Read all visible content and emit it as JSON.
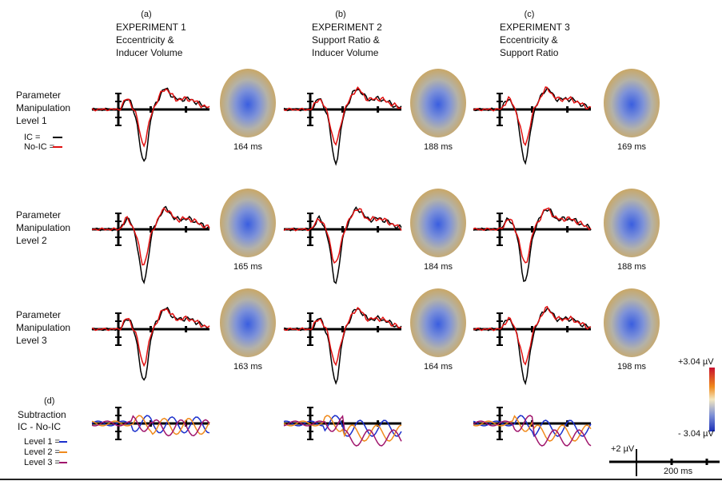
{
  "columns": [
    {
      "letter": "(a)",
      "title": "EXPERIMENT 1",
      "line1": "Eccentricity &",
      "line2": "Inducer Volume"
    },
    {
      "letter": "(b)",
      "title": "EXPERIMENT 2",
      "line1": "Support Ratio &",
      "line2": "Inducer Volume"
    },
    {
      "letter": "(c)",
      "title": "EXPERIMENT 3",
      "line1": "Eccentricity &",
      "line2": "Support Ratio"
    }
  ],
  "rows": [
    {
      "line1": "Parameter",
      "line2": "Manipulation",
      "line3": "Level 1",
      "latencies": [
        "164 ms",
        "188 ms",
        "169 ms"
      ]
    },
    {
      "line1": "Parameter",
      "line2": "Manipulation",
      "line3": "Level 2",
      "latencies": [
        "165 ms",
        "184 ms",
        "188 ms"
      ]
    },
    {
      "line1": "Parameter",
      "line2": "Manipulation",
      "line3": "Level 3",
      "latencies": [
        "163 ms",
        "164 ms",
        "198 ms"
      ]
    }
  ],
  "legend": {
    "ic": "IC =",
    "no_ic": "No-IC ="
  },
  "subtraction": {
    "letter": "(d)",
    "line1": "Subtraction",
    "line2": "IC -  No-IC",
    "levels": [
      "Level 1 =",
      "Level 2 =",
      "Level 3 ="
    ]
  },
  "colorbar": {
    "max": "+3.04 µV",
    "min": "- 3.04 µV"
  },
  "scale": {
    "amplitude": "+2 µV",
    "time": "200 ms"
  }
}
